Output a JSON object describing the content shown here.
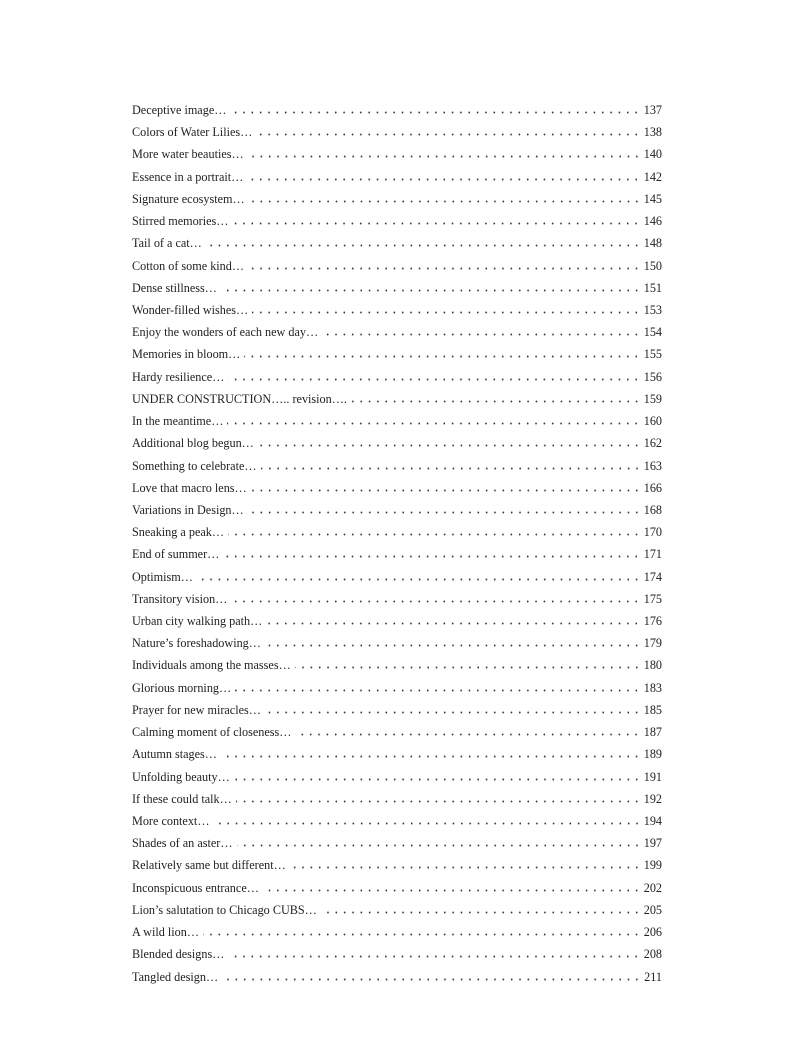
{
  "toc": [
    {
      "title": "Deceptive image…",
      "page": "137"
    },
    {
      "title": "Colors of Water Lilies…",
      "page": "138"
    },
    {
      "title": "More water beauties…",
      "page": "140"
    },
    {
      "title": "Essence in a portrait…",
      "page": "142"
    },
    {
      "title": "Signature ecosystem…",
      "page": "145"
    },
    {
      "title": "Stirred memories…",
      "page": "146"
    },
    {
      "title": "Tail of a cat…",
      "page": "148"
    },
    {
      "title": "Cotton of some kind…",
      "page": "150"
    },
    {
      "title": "Dense stillness…",
      "page": "151"
    },
    {
      "title": "Wonder-filled wishes…",
      "page": "153"
    },
    {
      "title": "Enjoy the wonders of each new day…",
      "page": "154"
    },
    {
      "title": "Memories in bloom…",
      "page": "155"
    },
    {
      "title": "Hardy resilience…",
      "page": "156"
    },
    {
      "title": "UNDER CONSTRUCTION….. revision….",
      "page": "159"
    },
    {
      "title": "In the meantime…",
      "page": "160"
    },
    {
      "title": "Additional blog begun…",
      "page": "162"
    },
    {
      "title": "Something to celebrate…",
      "page": "163"
    },
    {
      "title": "Love that macro lens…",
      "page": "166"
    },
    {
      "title": "Variations in Design…",
      "page": "168"
    },
    {
      "title": "Sneaking a peak…",
      "page": "170"
    },
    {
      "title": "End of summer…",
      "page": "171"
    },
    {
      "title": "Optimism…",
      "page": "174"
    },
    {
      "title": "Transitory vision…",
      "page": "175"
    },
    {
      "title": "Urban city walking path…",
      "page": "176"
    },
    {
      "title": "Nature’s foreshadowing…",
      "page": "179"
    },
    {
      "title": "Individuals among the masses…",
      "page": "180"
    },
    {
      "title": "Glorious morning…",
      "page": "183"
    },
    {
      "title": "Prayer for new miracles…",
      "page": "185"
    },
    {
      "title": "Calming moment of closeness…",
      "page": "187"
    },
    {
      "title": "Autumn stages…",
      "page": "189"
    },
    {
      "title": "Unfolding beauty…",
      "page": "191"
    },
    {
      "title": "If these could talk…",
      "page": "192"
    },
    {
      "title": "More context…",
      "page": "194"
    },
    {
      "title": "Shades of an aster…",
      "page": "197"
    },
    {
      "title": "Relatively same but different…",
      "page": "199"
    },
    {
      "title": "Inconspicuous entrance…",
      "page": "202"
    },
    {
      "title": "Lion’s salutation to Chicago CUBS…",
      "page": "205"
    },
    {
      "title": "A wild lion…",
      "page": "206"
    },
    {
      "title": "Blended designs…",
      "page": "208"
    },
    {
      "title": "Tangled design…",
      "page": "211"
    }
  ]
}
